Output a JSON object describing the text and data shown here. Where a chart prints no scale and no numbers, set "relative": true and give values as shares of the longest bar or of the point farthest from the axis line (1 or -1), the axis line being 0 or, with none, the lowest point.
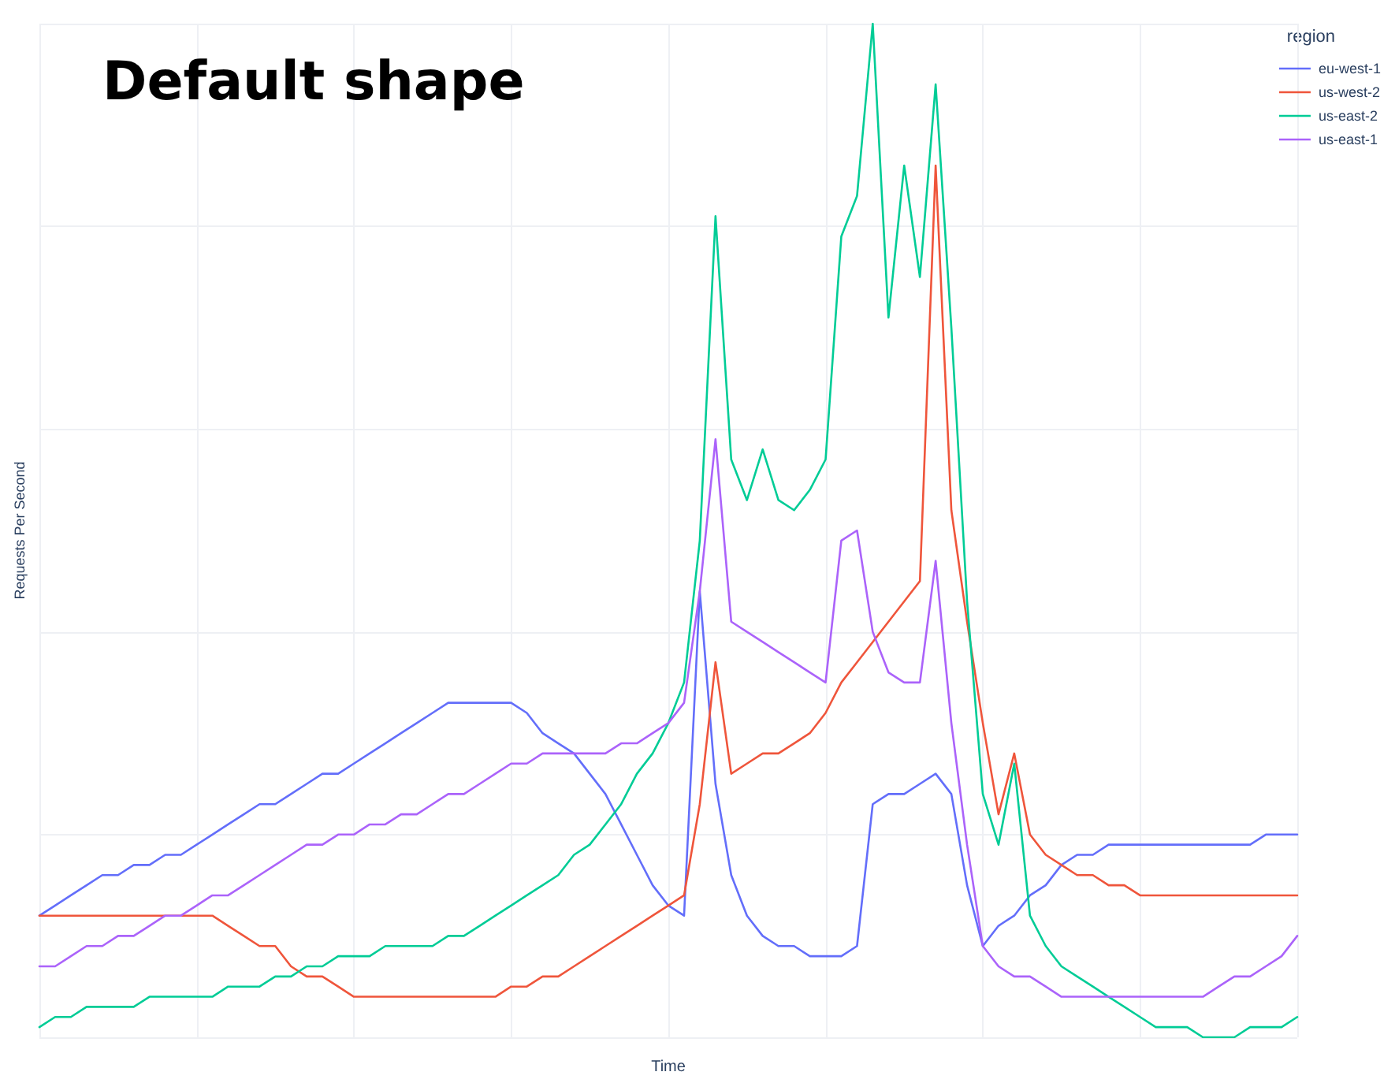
{
  "chart_data": {
    "type": "line",
    "title": "Default shape",
    "xlabel": "Time",
    "ylabel": "Requests Per Second",
    "legend_title": "region",
    "relative": true,
    "grid": true,
    "legend": "top right",
    "marker": "none",
    "line_style": "solid",
    "categories": [
      null,
      null,
      null,
      null,
      null,
      null,
      null,
      null,
      null,
      null,
      null,
      null,
      null,
      null,
      null,
      null,
      null,
      null,
      null,
      null,
      null,
      null,
      null,
      null,
      null,
      null,
      null,
      null,
      null,
      null,
      null,
      null,
      null,
      null,
      null,
      null,
      null,
      null,
      null,
      null,
      null,
      null,
      null,
      null,
      null,
      null,
      null,
      null,
      null,
      null,
      null,
      null,
      null,
      null,
      null,
      null,
      null,
      null,
      null,
      null,
      null,
      null,
      null,
      null,
      null,
      null,
      null,
      null,
      null,
      null,
      null,
      null,
      null,
      null,
      null,
      null,
      null,
      null,
      null,
      null,
      null
    ],
    "series": [
      {
        "name": "eu-west-1",
        "color": "#636efa",
        "values": [
          0.12,
          0.13,
          0.14,
          0.15,
          0.16,
          0.16,
          0.17,
          0.17,
          0.18,
          0.18,
          0.19,
          0.2,
          0.21,
          0.22,
          0.23,
          0.23,
          0.24,
          0.25,
          0.26,
          0.26,
          0.27,
          0.28,
          0.29,
          0.3,
          0.31,
          0.32,
          0.33,
          0.33,
          0.33,
          0.33,
          0.33,
          0.32,
          0.3,
          0.29,
          0.28,
          0.26,
          0.24,
          0.21,
          0.18,
          0.15,
          0.13,
          0.12,
          0.44,
          0.25,
          0.16,
          0.12,
          0.1,
          0.09,
          0.09,
          0.08,
          0.08,
          0.08,
          0.09,
          0.23,
          0.24,
          0.24,
          0.25,
          0.26,
          0.24,
          0.15,
          0.09,
          0.11,
          0.12,
          0.14,
          0.15,
          0.17,
          0.18,
          0.18,
          0.19,
          0.19,
          0.19,
          0.19,
          0.19,
          0.19,
          0.19,
          0.19,
          0.19,
          0.19,
          0.2,
          0.2,
          0.2
        ]
      },
      {
        "name": "us-west-2",
        "color": "#ef553b",
        "values": [
          0.12,
          0.12,
          0.12,
          0.12,
          0.12,
          0.12,
          0.12,
          0.12,
          0.12,
          0.12,
          0.12,
          0.12,
          0.11,
          0.1,
          0.09,
          0.09,
          0.07,
          0.06,
          0.06,
          0.05,
          0.04,
          0.04,
          0.04,
          0.04,
          0.04,
          0.04,
          0.04,
          0.04,
          0.04,
          0.04,
          0.05,
          0.05,
          0.06,
          0.06,
          0.07,
          0.08,
          0.09,
          0.1,
          0.11,
          0.12,
          0.13,
          0.14,
          0.23,
          0.37,
          0.26,
          0.27,
          0.28,
          0.28,
          0.29,
          0.3,
          0.32,
          0.35,
          0.37,
          0.39,
          0.41,
          0.43,
          0.45,
          0.86,
          0.52,
          0.41,
          0.31,
          0.22,
          0.28,
          0.2,
          0.18,
          0.17,
          0.16,
          0.16,
          0.15,
          0.15,
          0.14,
          0.14,
          0.14,
          0.14,
          0.14,
          0.14,
          0.14,
          0.14,
          0.14,
          0.14,
          0.14
        ]
      },
      {
        "name": "us-east-2",
        "color": "#00cc96",
        "values": [
          0.01,
          0.02,
          0.02,
          0.03,
          0.03,
          0.03,
          0.03,
          0.04,
          0.04,
          0.04,
          0.04,
          0.04,
          0.05,
          0.05,
          0.05,
          0.06,
          0.06,
          0.07,
          0.07,
          0.08,
          0.08,
          0.08,
          0.09,
          0.09,
          0.09,
          0.09,
          0.1,
          0.1,
          0.11,
          0.12,
          0.13,
          0.14,
          0.15,
          0.16,
          0.18,
          0.19,
          0.21,
          0.23,
          0.26,
          0.28,
          0.31,
          0.35,
          0.49,
          0.81,
          0.57,
          0.53,
          0.58,
          0.53,
          0.52,
          0.54,
          0.57,
          0.79,
          0.83,
          1,
          0.71,
          0.86,
          0.75,
          0.94,
          0.7,
          0.43,
          0.24,
          0.19,
          0.27,
          0.12,
          0.09,
          0.07,
          0.06,
          0.05,
          0.04,
          0.03,
          0.02,
          0.01,
          0.01,
          0.01,
          0,
          0,
          0,
          0.01,
          0.01,
          0.01,
          0.02
        ]
      },
      {
        "name": "us-east-1",
        "color": "#ab63fa",
        "values": [
          0.07,
          0.07,
          0.08,
          0.09,
          0.09,
          0.1,
          0.1,
          0.11,
          0.12,
          0.12,
          0.13,
          0.14,
          0.14,
          0.15,
          0.16,
          0.17,
          0.18,
          0.19,
          0.19,
          0.2,
          0.2,
          0.21,
          0.21,
          0.22,
          0.22,
          0.23,
          0.24,
          0.24,
          0.25,
          0.26,
          0.27,
          0.27,
          0.28,
          0.28,
          0.28,
          0.28,
          0.28,
          0.29,
          0.29,
          0.3,
          0.31,
          0.33,
          0.44,
          0.59,
          0.41,
          0.4,
          0.39,
          0.38,
          0.37,
          0.36,
          0.35,
          0.49,
          0.5,
          0.4,
          0.36,
          0.35,
          0.35,
          0.47,
          0.31,
          0.19,
          0.09,
          0.07,
          0.06,
          0.06,
          0.05,
          0.04,
          0.04,
          0.04,
          0.04,
          0.04,
          0.04,
          0.04,
          0.04,
          0.04,
          0.04,
          0.05,
          0.06,
          0.06,
          0.07,
          0.08,
          0.1
        ]
      }
    ]
  }
}
